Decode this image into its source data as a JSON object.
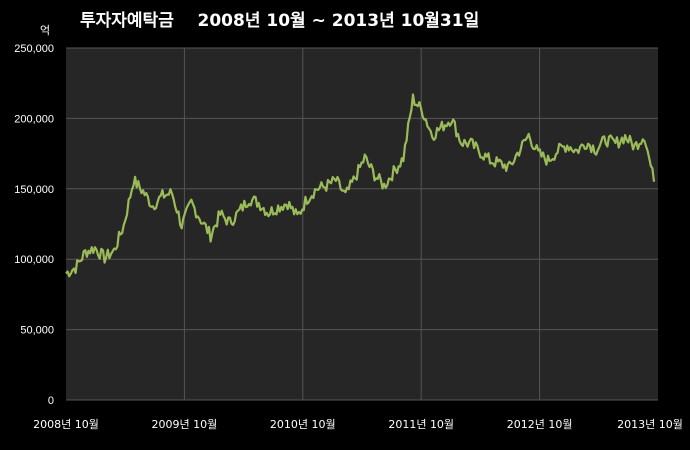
{
  "chart_data": {
    "type": "line",
    "title": "투자자예탁금    2008년 10월 ~ 2013년 10월31일",
    "unit_label": "억",
    "xlabel": "",
    "ylabel": "",
    "ylim": [
      0,
      250000
    ],
    "grid": true,
    "legend": "none",
    "y_ticks": [
      "0",
      "50,000",
      "100,000",
      "150,000",
      "200,000",
      "250,000"
    ],
    "y_tick_values": [
      0,
      50000,
      100000,
      150000,
      200000,
      250000
    ],
    "x_tick_labels": [
      "2008년 10월",
      "2009년 10월",
      "2010년 10월",
      "2011년 10월",
      "2012년 10월",
      "2013년 10월"
    ],
    "colors": {
      "line": "#9bbb59",
      "plot_bg": "#262626",
      "grid": "#555555"
    },
    "series": [
      {
        "values": [
          90000,
          94000,
          105000,
          108000,
          101000,
          106000,
          124000,
          156000,
          148000,
          138000,
          145000,
          147000,
          124000,
          140000,
          128000,
          117000,
          132000,
          126000,
          134000,
          143000,
          140000,
          133000,
          137000,
          140000,
          130000,
          143000,
          150000,
          152000,
          156000,
          145000,
          158000,
          172000,
          160000,
          152000,
          162000,
          172000,
          214000,
          205000,
          188000,
          194000,
          200000,
          183000,
          182000,
          176000,
          170000,
          168000,
          165000,
          177000,
          188000,
          175000,
          170000,
          177000,
          181000,
          177000,
          183000,
          178000,
          185000,
          182000,
          187000,
          180000,
          188000,
          155000
        ]
      }
    ]
  }
}
